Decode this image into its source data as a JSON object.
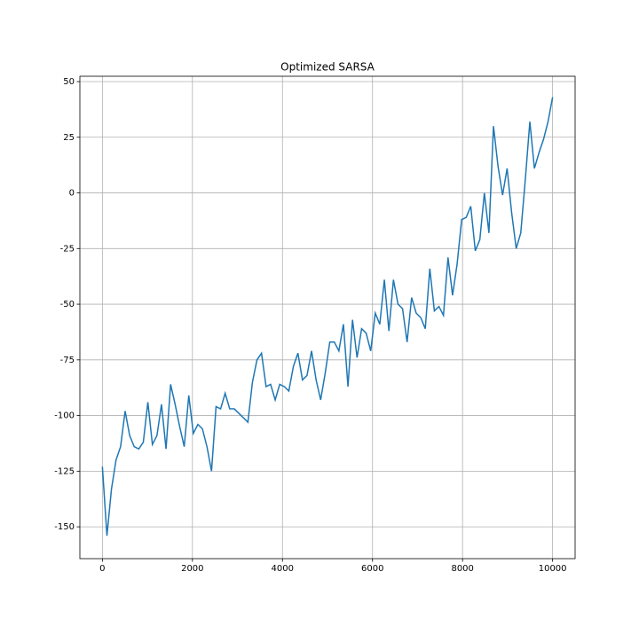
{
  "chart_data": {
    "type": "line",
    "title": "Optimized SARSA",
    "x": [
      0,
      101,
      202,
      303,
      404,
      505,
      606,
      707,
      808,
      909,
      1010,
      1111,
      1212,
      1313,
      1414,
      1515,
      1616,
      1717,
      1818,
      1919,
      2020,
      2121,
      2222,
      2323,
      2424,
      2525,
      2626,
      2727,
      2828,
      2929,
      3030,
      3131,
      3232,
      3333,
      3434,
      3535,
      3636,
      3737,
      3838,
      3939,
      4040,
      4141,
      4242,
      4343,
      4444,
      4545,
      4646,
      4747,
      4848,
      4949,
      5051,
      5152,
      5253,
      5354,
      5455,
      5556,
      5657,
      5758,
      5859,
      5960,
      6061,
      6162,
      6263,
      6364,
      6465,
      6566,
      6667,
      6768,
      6869,
      6970,
      7071,
      7172,
      7273,
      7374,
      7475,
      7576,
      7677,
      7778,
      7879,
      7980,
      8081,
      8182,
      8283,
      8384,
      8485,
      8586,
      8687,
      8788,
      8889,
      8990,
      9091,
      9192,
      9293,
      9394,
      9495,
      9596,
      9697,
      9798,
      9899,
      10000
    ],
    "series": [
      {
        "color": "#1f77b4",
        "values": [
          -123,
          -154,
          -133,
          -120,
          -114,
          -98,
          -109,
          -114,
          -115,
          -112,
          -94,
          -113,
          -109,
          -95,
          -115,
          -86,
          -95,
          -105,
          -114,
          -91,
          -108,
          -104,
          -106,
          -114,
          -125,
          -96,
          -97,
          -90,
          -97,
          -97,
          -99,
          -101,
          -103,
          -85,
          -75,
          -72,
          -87,
          -86,
          -93,
          -86,
          -87,
          -89,
          -78,
          -72,
          -84,
          -82,
          -71,
          -84,
          -93,
          -81,
          -67,
          -67,
          -71,
          -59,
          -87,
          -57,
          -74,
          -61,
          -63,
          -71,
          -54,
          -59,
          -39,
          -62,
          -39,
          -50,
          -52,
          -67,
          -47,
          -54,
          -56,
          -61,
          -34,
          -53,
          -51,
          -55,
          -29,
          -46,
          -32,
          -12,
          -11,
          -6,
          -26,
          -21,
          0,
          -18,
          30,
          12,
          -1,
          11,
          -9,
          -25,
          -18,
          6,
          32,
          11,
          18,
          24,
          32,
          43
        ]
      }
    ],
    "xlim": [
      -500,
      10500
    ],
    "ylim": [
      -164.3,
      52.4
    ],
    "xticks": [
      0,
      2000,
      4000,
      6000,
      8000,
      10000
    ],
    "yticks": [
      -150,
      -125,
      -100,
      -75,
      -50,
      -25,
      0,
      25,
      50
    ],
    "grid": true
  }
}
